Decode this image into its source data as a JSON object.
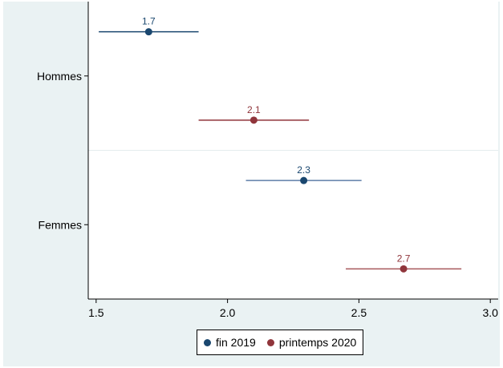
{
  "chart_data": {
    "type": "scatter",
    "variant": "dot-with-confidence-interval",
    "title": "",
    "xlabel": "",
    "ylabel": "",
    "xlim": [
      1.47,
      3.03
    ],
    "xticks": [
      1.5,
      2.0,
      2.5,
      3.0
    ],
    "xtick_labels": [
      "1.5",
      "2.0",
      "2.5",
      "3.0"
    ],
    "categories": [
      "Hommes",
      "Femmes"
    ],
    "grid": "horizontal separator between groups",
    "legend_position": "bottom",
    "series": [
      {
        "name": "fin 2019",
        "color": "#1a476f",
        "points": [
          {
            "category": "Hommes",
            "value": 1.7,
            "ci": [
              1.51,
              1.89
            ],
            "label": "1.7"
          },
          {
            "category": "Femmes",
            "value": 2.29,
            "ci": [
              2.07,
              2.51
            ],
            "label": "2.3"
          }
        ]
      },
      {
        "name": "printemps 2020",
        "color": "#90353b",
        "points": [
          {
            "category": "Hommes",
            "value": 2.1,
            "ci": [
              1.89,
              2.31
            ],
            "label": "2.1"
          },
          {
            "category": "Femmes",
            "value": 2.67,
            "ci": [
              2.45,
              2.89
            ],
            "label": "2.7"
          }
        ]
      }
    ]
  }
}
